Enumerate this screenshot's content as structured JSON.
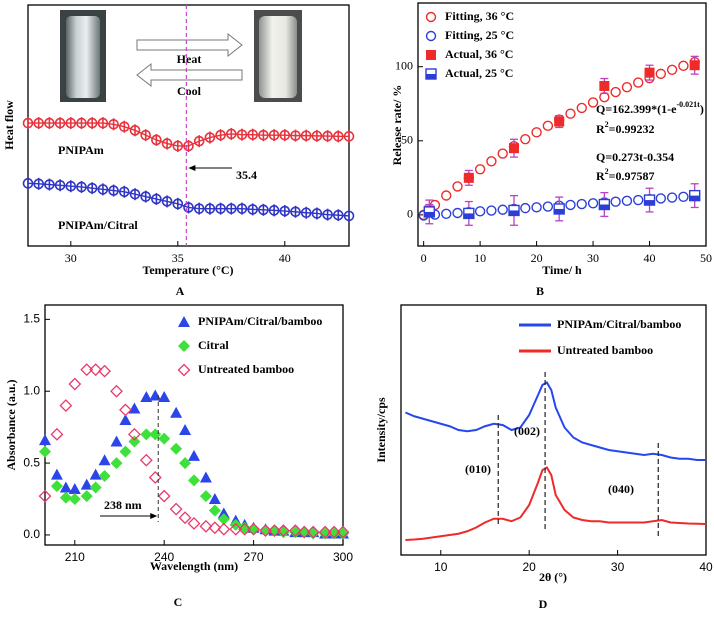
{
  "chart_data": [
    {
      "type": "line",
      "panel_label": "A",
      "x_label": "Temperature (°C)",
      "y_label": "Heat flow",
      "xlim": [
        28,
        43
      ],
      "ylim": [
        0,
        10
      ],
      "xticks": [
        30,
        35,
        40
      ],
      "annotations": [
        "Heat",
        "Cool"
      ],
      "marker_line": 35.4,
      "marker_line_color": "#cc44cc",
      "x": [
        28,
        28.5,
        29,
        29.5,
        30,
        30.5,
        31,
        31.5,
        32,
        32.5,
        33,
        33.5,
        34,
        34.5,
        35,
        35.5,
        36,
        36.5,
        37,
        37.5,
        38,
        38.5,
        39,
        39.5,
        40,
        40.5,
        41,
        41.5,
        42,
        42.5,
        43
      ],
      "series": [
        {
          "name": "PNIPAm",
          "color": "#e8323c",
          "marker": "circle-bar",
          "values": [
            5.1,
            5.1,
            5.1,
            5.1,
            5.1,
            5.1,
            5.1,
            5.1,
            5.05,
            4.95,
            4.8,
            4.6,
            4.4,
            4.25,
            4.15,
            4.15,
            4.35,
            4.5,
            4.6,
            4.65,
            4.62,
            4.62,
            4.6,
            4.6,
            4.6,
            4.58,
            4.58,
            4.57,
            4.56,
            4.55,
            4.55
          ]
        },
        {
          "name": "PNIPAm/Citral",
          "color": "#2f35c4",
          "marker": "circle-bar",
          "values": [
            2.6,
            2.58,
            2.55,
            2.52,
            2.48,
            2.45,
            2.4,
            2.35,
            2.3,
            2.25,
            2.15,
            2.05,
            1.95,
            1.85,
            1.75,
            1.6,
            1.55,
            1.55,
            1.55,
            1.55,
            1.55,
            1.52,
            1.5,
            1.48,
            1.45,
            1.42,
            1.38,
            1.35,
            1.3,
            1.28,
            1.25
          ]
        }
      ]
    },
    {
      "type": "scatter",
      "panel_label": "B",
      "x_label": "Time/ h",
      "y_label": "Release rate/ %",
      "xlim": [
        -1,
        50
      ],
      "ylim": [
        -21,
        143
      ],
      "xticks": [
        0,
        10,
        20,
        30,
        40,
        50
      ],
      "yticks": [
        0,
        50,
        100
      ],
      "legend": "upper left",
      "equations": [
        {
          "text": "Q=162.399*(1-e",
          "sup": "-0.021t",
          "end": ")",
          "r": "R",
          "rsup": "2",
          "rend": "=0.99232",
          "color": "#e0245e"
        },
        {
          "text": "Q=0.273t-0.354",
          "r": "R",
          "rsup": "2",
          "rend": "=0.97587",
          "color": "#2b3fbf"
        }
      ],
      "series": [
        {
          "name": "Fitting, 36 °C",
          "color": "#ee2b2b",
          "marker": "circle",
          "x": [
            0,
            2,
            4,
            6,
            8,
            10,
            12,
            14,
            16,
            18,
            20,
            22,
            24,
            26,
            28,
            30,
            32,
            34,
            36,
            38,
            40,
            42,
            44,
            46,
            48
          ],
          "values": [
            0,
            6.67,
            13.08,
            19.23,
            25.1,
            30.76,
            36.17,
            41.36,
            46.35,
            51.12,
            55.7,
            60.09,
            64.3,
            68.33,
            72.2,
            75.91,
            79.46,
            82.87,
            86.15,
            89.29,
            92.29,
            95.17,
            97.94,
            100.59,
            103.14
          ]
        },
        {
          "name": "Fitting, 25 °C",
          "color": "#2b3fd8",
          "marker": "circle",
          "x": [
            0,
            2,
            4,
            6,
            8,
            10,
            12,
            14,
            16,
            18,
            20,
            22,
            24,
            26,
            28,
            30,
            32,
            34,
            36,
            38,
            40,
            42,
            44,
            46,
            48
          ],
          "values": [
            -0.35,
            0.19,
            0.74,
            1.28,
            1.83,
            2.38,
            2.92,
            3.47,
            4.01,
            4.56,
            5.11,
            5.65,
            6.2,
            6.74,
            7.29,
            7.84,
            8.38,
            8.93,
            9.47,
            10.02,
            10.57,
            11.11,
            11.66,
            12.2,
            12.75
          ]
        },
        {
          "name": "Actual, 36 °C",
          "color": "#ee2b2b",
          "marker": "square",
          "error_color": "#c040c0",
          "x": [
            1,
            8,
            16,
            24,
            32,
            40,
            48
          ],
          "values": [
            3,
            25,
            45,
            63,
            87,
            96,
            101
          ],
          "errors": [
            4,
            5,
            6,
            4,
            5,
            5,
            6
          ]
        },
        {
          "name": "Actual, 25 °C",
          "color": "#2b3fd8",
          "marker": "square-half",
          "error_color": "#c040c0",
          "x": [
            1,
            8,
            16,
            24,
            32,
            40,
            48
          ],
          "values": [
            2,
            1,
            3,
            4,
            7,
            10,
            13
          ],
          "errors": [
            8,
            8,
            10,
            8,
            8,
            8,
            8
          ]
        }
      ]
    },
    {
      "type": "scatter",
      "panel_label": "C",
      "x_label": "Wavelength (nm)",
      "y_label": "Absorbance (a.u.)",
      "xlim": [
        200,
        300
      ],
      "ylim": [
        -0.07,
        1.6
      ],
      "xticks": [
        210,
        240,
        270,
        300
      ],
      "yticks": [
        {
          "value": 0,
          "label": "0.0"
        },
        0.5,
        {
          "value": 1,
          "label": "1.0"
        },
        1.5
      ],
      "legend": "upper right",
      "marker_line": {
        "value": 238,
        "label": "238 nm"
      },
      "x": [
        200,
        204,
        207,
        210,
        214,
        217,
        220,
        224,
        227,
        230,
        234,
        237,
        240,
        244,
        247,
        250,
        254,
        257,
        260,
        264,
        267,
        270,
        274,
        277,
        280,
        284,
        287,
        290,
        294,
        297,
        300
      ],
      "series": [
        {
          "name": "PNIPAm/Citral/bamboo",
          "color": "#2b45e8",
          "marker": "triangle",
          "values": [
            0.66,
            0.42,
            0.33,
            0.32,
            0.35,
            0.42,
            0.52,
            0.65,
            0.8,
            0.88,
            0.96,
            0.97,
            0.96,
            0.85,
            0.73,
            0.55,
            0.4,
            0.25,
            0.15,
            0.1,
            0.07,
            0.05,
            0.04,
            0.03,
            0.03,
            0.02,
            0.02,
            0.02,
            0.01,
            0.01,
            0.01
          ]
        },
        {
          "name": "Citral",
          "color": "#3ee03a",
          "marker": "diamond",
          "values": [
            0.58,
            0.34,
            0.26,
            0.25,
            0.27,
            0.33,
            0.41,
            0.5,
            0.58,
            0.65,
            0.7,
            0.7,
            0.67,
            0.6,
            0.5,
            0.38,
            0.27,
            0.17,
            0.11,
            0.07,
            0.05,
            0.04,
            0.03,
            0.03,
            0.02,
            0.02,
            0.02,
            0.01,
            0.01,
            0.01,
            0.01
          ]
        },
        {
          "name": "Untreated bamboo",
          "color": "#e83a6b",
          "marker": "diamond-open",
          "values": [
            0.27,
            0.7,
            0.9,
            1.05,
            1.15,
            1.15,
            1.14,
            1,
            0.87,
            0.7,
            0.52,
            0.4,
            0.27,
            0.18,
            0.12,
            0.08,
            0.06,
            0.05,
            0.04,
            0.04,
            0.04,
            0.04,
            0.03,
            0.03,
            0.03,
            0.03,
            0.02,
            0.02,
            0.02,
            0.02,
            0.02
          ]
        }
      ]
    },
    {
      "type": "line",
      "panel_label": "D",
      "x_label": "2θ (°)",
      "y_label": "Intensity/cps",
      "xlim": [
        5.5,
        40
      ],
      "ylim": [
        0,
        10
      ],
      "xticks": [
        10,
        20,
        30,
        40
      ],
      "legend": "upper right",
      "peaks": [
        {
          "value": 16.5,
          "label": "(010)"
        },
        {
          "value": 21.8,
          "label": "(002)"
        },
        {
          "value": 34.6,
          "label": "(040)"
        }
      ],
      "x": [
        6,
        7,
        8,
        9,
        10,
        11,
        12,
        13,
        14,
        15,
        16,
        17,
        18,
        19,
        20,
        21,
        21.5,
        22,
        22.5,
        23,
        24,
        25,
        26,
        27,
        28,
        29,
        30,
        31,
        32,
        33,
        34,
        35,
        36,
        37,
        38,
        39,
        40
      ],
      "series": [
        {
          "name": "PNIPAm/Citral/bamboo",
          "color": "#2747ee",
          "marker": "none",
          "values": [
            5.7,
            5.55,
            5.45,
            5.35,
            5.25,
            5.15,
            5,
            4.95,
            5,
            5.15,
            5.25,
            5.2,
            5,
            5.1,
            5.6,
            6.4,
            6.8,
            6.9,
            6.6,
            5.9,
            5.1,
            4.7,
            4.5,
            4.4,
            4.3,
            4.2,
            4.15,
            4.1,
            4.05,
            4,
            4.05,
            4,
            3.9,
            3.85,
            3.85,
            3.8,
            3.8
          ]
        },
        {
          "name": "Untreated bamboo",
          "color": "#ee2a2a",
          "marker": "none",
          "values": [
            0.6,
            0.62,
            0.65,
            0.7,
            0.75,
            0.8,
            0.85,
            0.95,
            1.1,
            1.3,
            1.45,
            1.45,
            1.35,
            1.5,
            2,
            2.9,
            3.4,
            3.5,
            3.2,
            2.4,
            1.8,
            1.5,
            1.4,
            1.35,
            1.35,
            1.3,
            1.3,
            1.3,
            1.3,
            1.3,
            1.35,
            1.4,
            1.3,
            1.28,
            1.26,
            1.25,
            1.24
          ]
        }
      ]
    }
  ]
}
